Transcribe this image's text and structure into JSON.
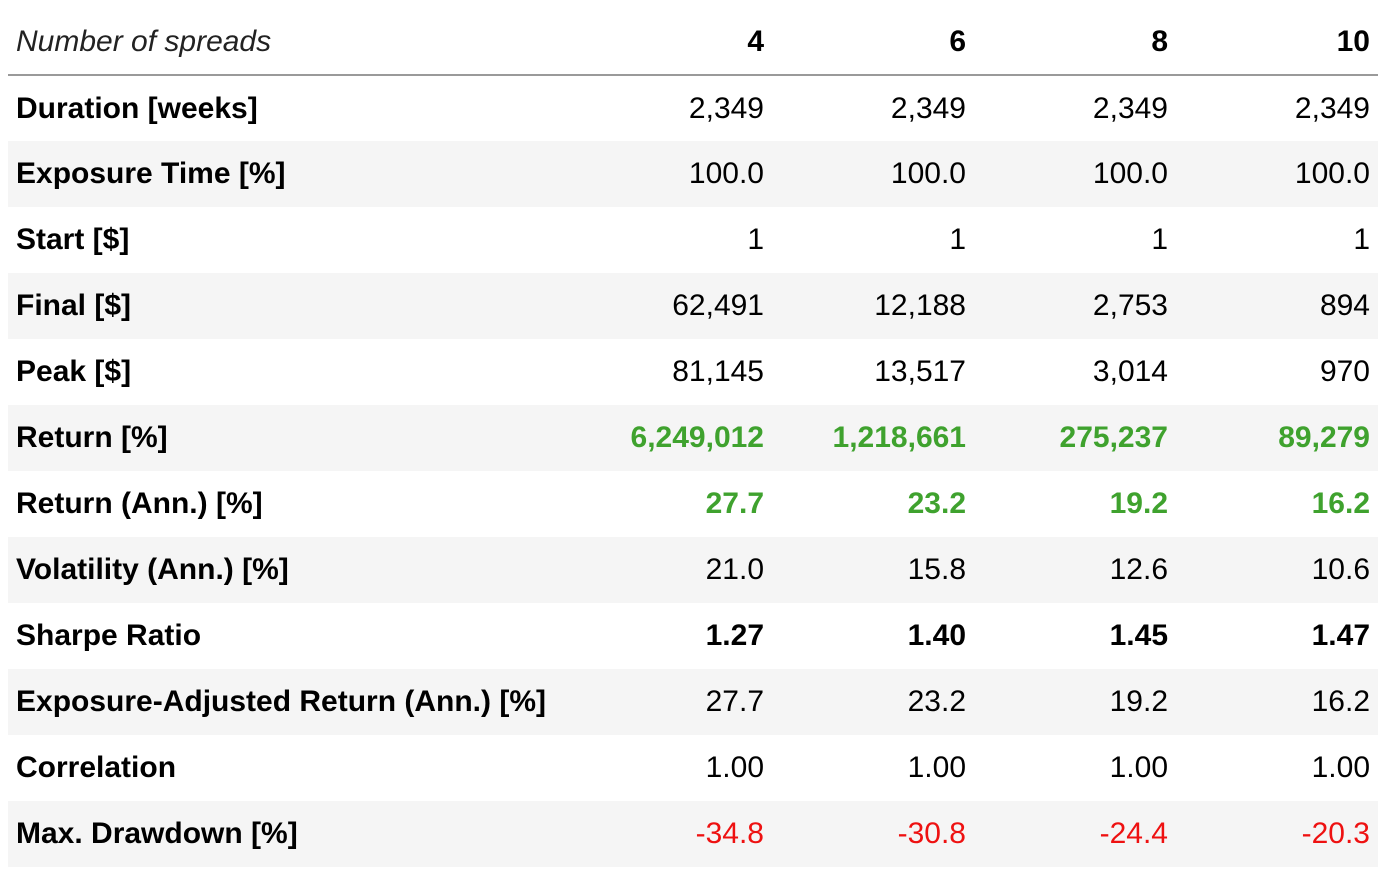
{
  "table": {
    "header": {
      "label": "Number of spreads",
      "columns": [
        "4",
        "6",
        "8",
        "10"
      ]
    },
    "rows": [
      {
        "label": "Duration [weeks]",
        "values": [
          "2,349",
          "2,349",
          "2,349",
          "2,349"
        ],
        "tone": "neutral",
        "bold": false
      },
      {
        "label": "Exposure Time [%]",
        "values": [
          "100.0",
          "100.0",
          "100.0",
          "100.0"
        ],
        "tone": "neutral",
        "bold": false
      },
      {
        "label": "Start [$]",
        "values": [
          "1",
          "1",
          "1",
          "1"
        ],
        "tone": "neutral",
        "bold": false
      },
      {
        "label": "Final [$]",
        "values": [
          "62,491",
          "12,188",
          "2,753",
          "894"
        ],
        "tone": "neutral",
        "bold": false
      },
      {
        "label": "Peak [$]",
        "values": [
          "81,145",
          "13,517",
          "3,014",
          "970"
        ],
        "tone": "neutral",
        "bold": false
      },
      {
        "label": "Return [%]",
        "values": [
          "6,249,012",
          "1,218,661",
          "275,237",
          "89,279"
        ],
        "tone": "positive",
        "bold": true
      },
      {
        "label": "Return (Ann.) [%]",
        "values": [
          "27.7",
          "23.2",
          "19.2",
          "16.2"
        ],
        "tone": "positive",
        "bold": true
      },
      {
        "label": "Volatility (Ann.) [%]",
        "values": [
          "21.0",
          "15.8",
          "12.6",
          "10.6"
        ],
        "tone": "neutral",
        "bold": false
      },
      {
        "label": "Sharpe Ratio",
        "values": [
          "1.27",
          "1.40",
          "1.45",
          "1.47"
        ],
        "tone": "neutral",
        "bold": true
      },
      {
        "label": "Exposure-Adjusted Return (Ann.) [%]",
        "values": [
          "27.7",
          "23.2",
          "19.2",
          "16.2"
        ],
        "tone": "neutral",
        "bold": false
      },
      {
        "label": "Correlation",
        "values": [
          "1.00",
          "1.00",
          "1.00",
          "1.00"
        ],
        "tone": "neutral",
        "bold": false
      },
      {
        "label": "Max. Drawdown [%]",
        "values": [
          "-34.8",
          "-30.8",
          "-24.4",
          "-20.3"
        ],
        "tone": "negative",
        "bold": false
      }
    ]
  },
  "colors": {
    "positive": "#3fa22e",
    "negative": "#ee1111",
    "stripe": "#f5f5f5",
    "header_rule": "#9a9a9a"
  }
}
